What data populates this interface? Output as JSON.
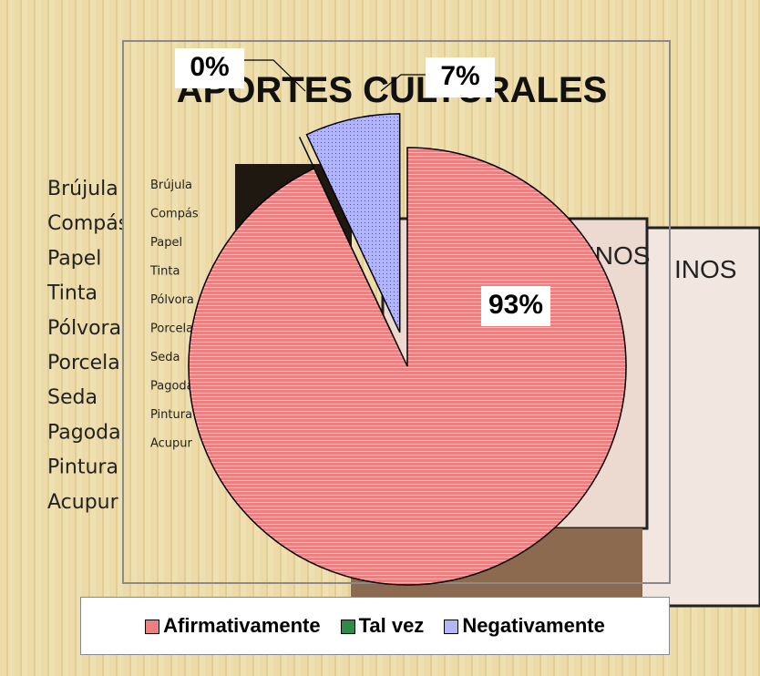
{
  "background": {
    "title": "APORTES CULTURALES",
    "items": [
      "Brújula",
      "Compás",
      "Papel",
      "Tinta",
      "Pólvora",
      "Porcela",
      "Seda",
      "Pagoda",
      "Pintura",
      "Acupur"
    ],
    "poster_text": "INOS"
  },
  "chart_data": {
    "type": "pie",
    "categories": [
      "Afirmativamente",
      "Tal vez",
      "Negativamente"
    ],
    "values": [
      93,
      0,
      7
    ],
    "value_labels": [
      "93%",
      "0%",
      "7%"
    ],
    "colors": [
      "#ec8080",
      "#2f8a4a",
      "#b3b6f2"
    ],
    "legend": "bottom"
  }
}
